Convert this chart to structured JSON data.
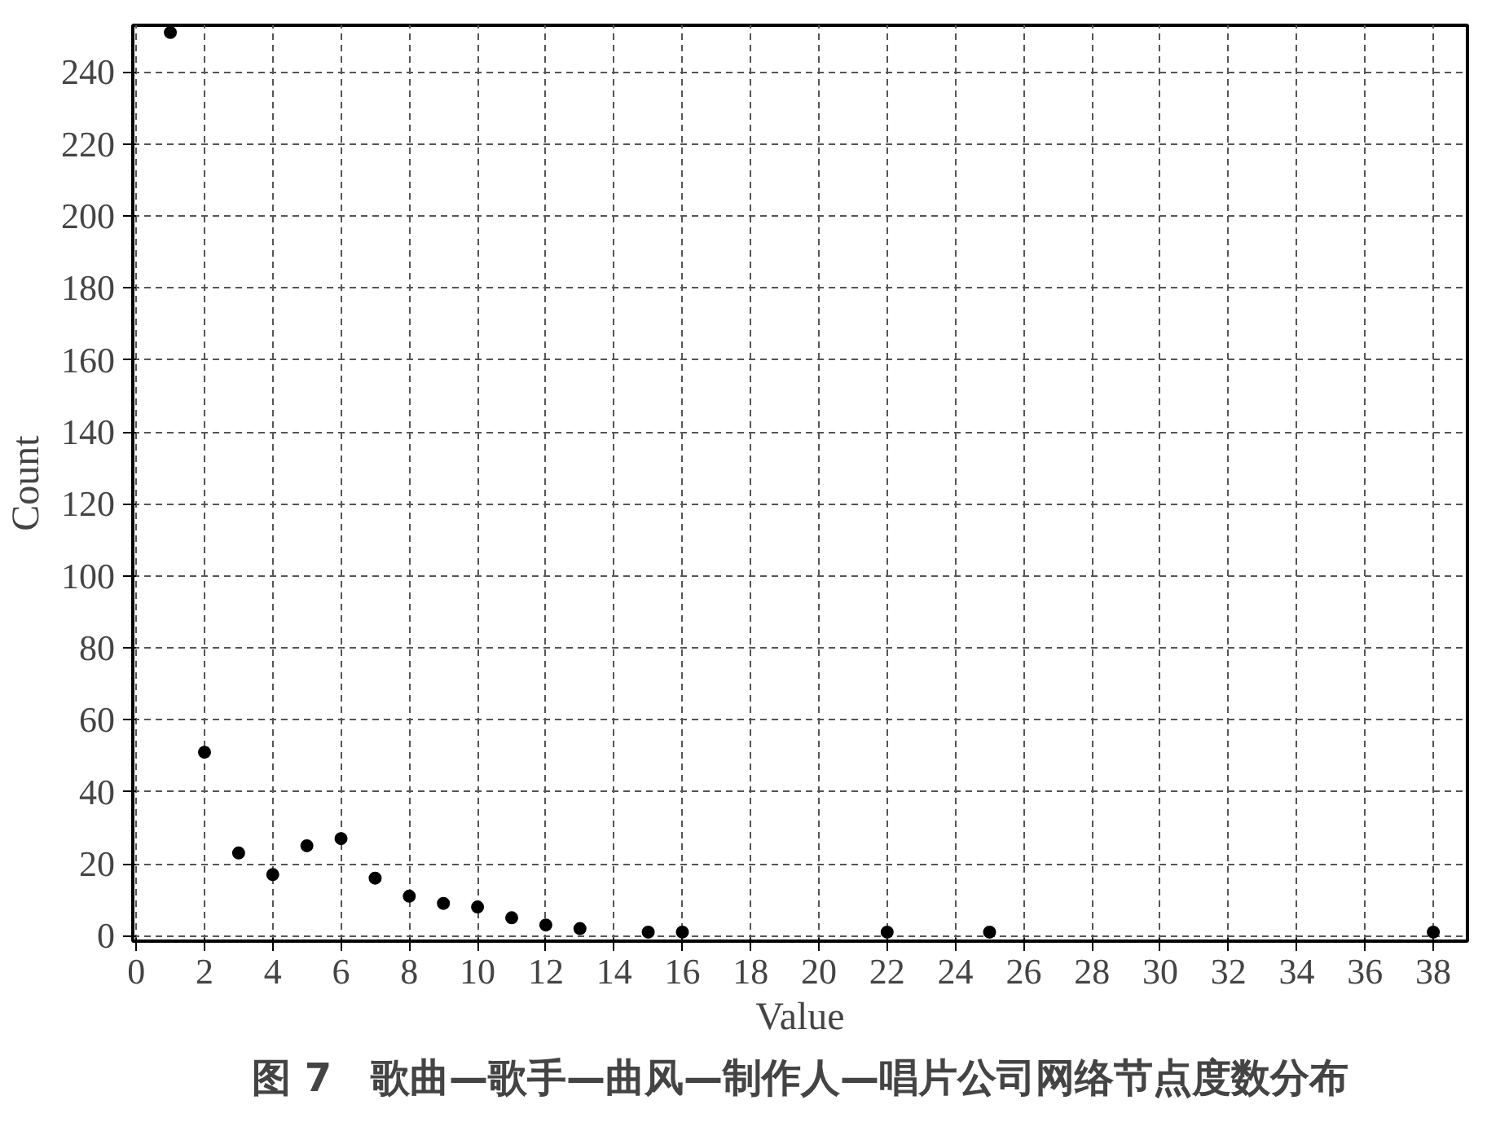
{
  "chart_data": {
    "type": "scatter",
    "title": "图 7　歌曲—歌手—曲风—制作人—唱片公司网络节点度数分布",
    "xlabel": "Value",
    "ylabel": "Count",
    "x": [
      1,
      2,
      3,
      4,
      5,
      6,
      7,
      8,
      9,
      10,
      11,
      12,
      13,
      15,
      16,
      22,
      25,
      38
    ],
    "series": [
      {
        "color": "#000000",
        "values": [
          251,
          51,
          23,
          17,
          25,
          27,
          16,
          11,
          9,
          8,
          5,
          3,
          2,
          1,
          1,
          1,
          1,
          1
        ]
      }
    ],
    "xlim": [
      -0.1,
      39
    ],
    "ylim": [
      -1.5,
      253
    ],
    "xticks": [
      0,
      2,
      4,
      6,
      8,
      10,
      12,
      14,
      16,
      18,
      20,
      22,
      24,
      26,
      28,
      30,
      32,
      34,
      36,
      38
    ],
    "yticks": [
      0,
      20,
      40,
      60,
      80,
      100,
      120,
      140,
      160,
      180,
      200,
      220,
      240
    ],
    "grid": true,
    "marker": "circle"
  }
}
